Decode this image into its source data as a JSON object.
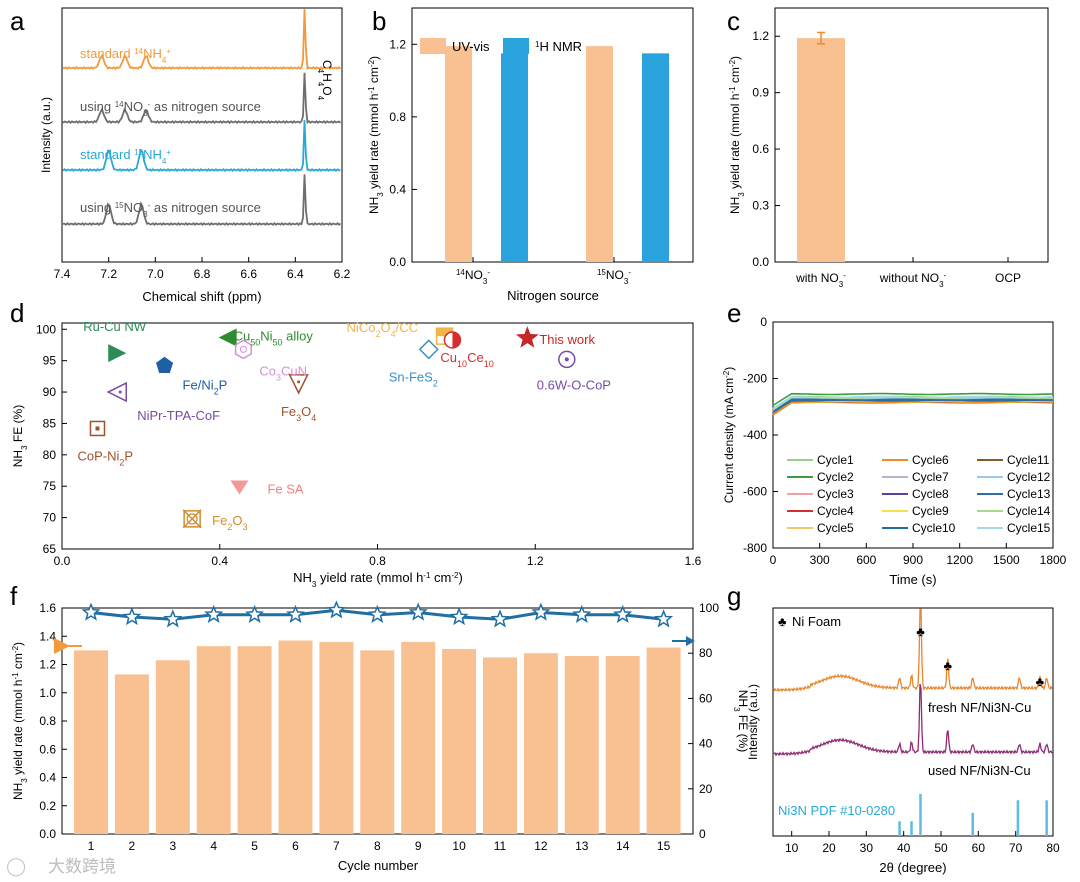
{
  "colors": {
    "orange": "#f39a3c",
    "grey": "#6e6e6e",
    "cyan": "#29a9d6",
    "bar_orange": "#f9c192",
    "bar_blue": "#2aa3dd",
    "star_blue": "#1f6fa3",
    "xrd_orange": "#e8872f",
    "xrd_purple": "#8e2b72",
    "pdf_blue": "#5bbde0"
  },
  "panels": {
    "a": {
      "letter": "a"
    },
    "b": {
      "letter": "b"
    },
    "c": {
      "letter": "c"
    },
    "d": {
      "letter": "d"
    },
    "e": {
      "letter": "e"
    },
    "f": {
      "letter": "f"
    },
    "g": {
      "letter": "g"
    }
  },
  "watermark": {
    "text": "大数跨境"
  },
  "chart_data": [
    {
      "panel": "a",
      "type": "line",
      "title": "",
      "xlabel": "Chemical shift (ppm)",
      "ylabel": "Intensity (a.u.)",
      "xlim": [
        7.4,
        6.2
      ],
      "xticks": [
        "7.4",
        "7.2",
        "7.0",
        "6.8",
        "6.6",
        "6.4",
        "6.2"
      ],
      "peak_label": "C4H4O4",
      "series": [
        {
          "name": "standard 14NH4+",
          "label_parts": [
            "standard ",
            "14",
            "NH",
            "4",
            "+"
          ],
          "color": "orange",
          "peaks_ppm": [
            7.23,
            7.13,
            7.04,
            6.36
          ]
        },
        {
          "name": "using 14NO3- as nitrogen source",
          "label_parts": [
            "using ",
            "14",
            "NO",
            "3",
            "-",
            " as nitrogen source"
          ],
          "color": "grey",
          "peaks_ppm": [
            7.23,
            7.13,
            7.04,
            6.36
          ]
        },
        {
          "name": "standard 15NH4+",
          "label_parts": [
            "standard ",
            "15",
            "NH",
            "4",
            "+"
          ],
          "color": "cyan",
          "peaks_ppm": [
            7.2,
            7.06,
            6.36
          ]
        },
        {
          "name": "using 15NO3- as nitrogen source",
          "label_parts": [
            "using ",
            "15",
            "NO",
            "3",
            "-",
            " as nitrogen source"
          ],
          "color": "grey",
          "peaks_ppm": [
            7.2,
            7.06,
            6.36
          ]
        }
      ]
    },
    {
      "panel": "b",
      "type": "bar",
      "xlabel": "Nitrogen source",
      "ylabel": "NH3 yield rate (mmol h-1 cm-2)",
      "ylim": [
        0,
        1.4
      ],
      "yticks": [
        "0.0",
        "0.4",
        "0.8",
        "1.2"
      ],
      "categories": [
        "14NO3-",
        "15NO3-"
      ],
      "series": [
        {
          "name": "UV-vis",
          "color": "bar_orange",
          "values": [
            1.19,
            1.19
          ]
        },
        {
          "name": "1H NMR",
          "color": "bar_blue",
          "values": [
            1.15,
            1.15
          ]
        }
      ]
    },
    {
      "panel": "c",
      "type": "bar",
      "xlabel": "",
      "ylabel": "NH3 yield rate (mmol h-1 cm-2)",
      "ylim": [
        0,
        1.35
      ],
      "yticks": [
        "0.0",
        "0.3",
        "0.6",
        "0.9",
        "1.2"
      ],
      "categories": [
        "with NO3-",
        "without NO3-",
        "OCP"
      ],
      "values": [
        1.19,
        0,
        0
      ],
      "error": [
        0.03,
        0,
        0
      ]
    },
    {
      "panel": "d",
      "type": "scatter",
      "xlabel": "NH3 yield rate (mmol h-1 cm-2)",
      "ylabel": "NH3 FE (%)",
      "xlim": [
        0,
        1.6
      ],
      "ylim": [
        65,
        101
      ],
      "xticks": [
        "0.0",
        "0.4",
        "0.8",
        "1.2",
        "1.6"
      ],
      "yticks": [
        "65",
        "70",
        "75",
        "80",
        "85",
        "90",
        "95",
        "100"
      ],
      "points": [
        {
          "name": "Ru-Cu NW",
          "x": 0.14,
          "y": 96.2,
          "marker": "tri-right",
          "color": "#2e8b57"
        },
        {
          "name": "Cu50Ni50 alloy",
          "x": 0.42,
          "y": 98.7,
          "marker": "tri-left",
          "color": "#2e8b2e"
        },
        {
          "name": "Co3CuN",
          "x": 0.46,
          "y": 96.8,
          "marker": "hexagon",
          "color": "#d68fd6"
        },
        {
          "name": "Fe/Ni2P",
          "x": 0.26,
          "y": 94.2,
          "marker": "pentagon",
          "color": "#1f5fa3"
        },
        {
          "name": "NiPr-TPA-CoF",
          "x": 0.14,
          "y": 90.0,
          "marker": "tri-left-dot",
          "color": "#7a4aa6"
        },
        {
          "name": "Fe3O4",
          "x": 0.6,
          "y": 91.3,
          "marker": "tri-down-dot",
          "color": "#a0522d"
        },
        {
          "name": "CoP-Ni2P",
          "x": 0.09,
          "y": 84.2,
          "marker": "square-dot",
          "color": "#a0522d"
        },
        {
          "name": "Fe SA",
          "x": 0.45,
          "y": 74.8,
          "marker": "tri-down",
          "color": "#f08080"
        },
        {
          "name": "Fe2O3",
          "x": 0.33,
          "y": 69.8,
          "marker": "crossed-square",
          "color": "#d48c2e"
        },
        {
          "name": "NiCo2O4/CC",
          "x": 0.97,
          "y": 98.9,
          "marker": "square-half",
          "color": "#f3b54a"
        },
        {
          "name": "Cu10Ce10",
          "x": 0.99,
          "y": 98.3,
          "marker": "circle-half",
          "color": "#d32f2f"
        },
        {
          "name": "Sn-FeS2",
          "x": 0.93,
          "y": 96.8,
          "marker": "diamond",
          "color": "#3a8fc6"
        },
        {
          "name": "This work",
          "x": 1.18,
          "y": 98.6,
          "marker": "star",
          "color": "#c62828"
        },
        {
          "name": "0.6W-O-CoP",
          "x": 1.28,
          "y": 95.2,
          "marker": "circle-dot",
          "color": "#7a4aa6"
        }
      ]
    },
    {
      "panel": "e",
      "type": "line",
      "xlabel": "Time (s)",
      "ylabel": "Current density (mA cm-2)",
      "xlim": [
        0,
        1800
      ],
      "ylim": [
        -800,
        0
      ],
      "xticks": [
        "0",
        "300",
        "600",
        "900",
        "1200",
        "1500",
        "1800"
      ],
      "yticks": [
        "0",
        "-200",
        "-400",
        "-600",
        "-800"
      ],
      "series": [
        {
          "name": "Cycle1",
          "color": "#9ad08a",
          "steady": -265
        },
        {
          "name": "Cycle2",
          "color": "#3f9b3f",
          "steady": -255
        },
        {
          "name": "Cycle3",
          "color": "#f0a0a0",
          "steady": -275
        },
        {
          "name": "Cycle4",
          "color": "#d32f2f",
          "steady": -280
        },
        {
          "name": "Cycle5",
          "color": "#f3c86a",
          "steady": -285
        },
        {
          "name": "Cycle6",
          "color": "#ef8a24",
          "steady": -285
        },
        {
          "name": "Cycle7",
          "color": "#b9b2d6",
          "steady": -275
        },
        {
          "name": "Cycle8",
          "color": "#5a3f9b",
          "steady": -280
        },
        {
          "name": "Cycle9",
          "color": "#f5e04a",
          "steady": -280
        },
        {
          "name": "Cycle10",
          "color": "#1f6fa3",
          "steady": -278
        },
        {
          "name": "Cycle11",
          "color": "#8b5a2b",
          "steady": -272
        },
        {
          "name": "Cycle12",
          "color": "#9ec8e8",
          "steady": -270
        },
        {
          "name": "Cycle13",
          "color": "#2c6fa8",
          "steady": -275
        },
        {
          "name": "Cycle14",
          "color": "#a8d98a",
          "steady": -268
        },
        {
          "name": "Cycle15",
          "color": "#a5d8e8",
          "steady": -266
        }
      ]
    },
    {
      "panel": "f",
      "type": "bar",
      "xlabel": "Cycle number",
      "ylabel": "NH3 yield rate (mmol h-1 cm-2)",
      "ylabel_right": "NH3 FE (%)",
      "ylim": [
        0,
        1.6
      ],
      "ylim_right": [
        0,
        100
      ],
      "yticks": [
        "0.0",
        "0.2",
        "0.4",
        "0.6",
        "0.8",
        "1.0",
        "1.2",
        "1.4",
        "1.6"
      ],
      "yticks_right": [
        "0",
        "20",
        "40",
        "60",
        "80",
        "100"
      ],
      "categories": [
        "1",
        "2",
        "3",
        "4",
        "5",
        "6",
        "7",
        "8",
        "9",
        "10",
        "11",
        "12",
        "13",
        "14",
        "15"
      ],
      "series": [
        {
          "name": "NH3 yield rate",
          "values": [
            1.3,
            1.13,
            1.23,
            1.33,
            1.33,
            1.37,
            1.36,
            1.3,
            1.36,
            1.31,
            1.25,
            1.28,
            1.26,
            1.26,
            1.32
          ]
        },
        {
          "name": "NH3 FE",
          "axis": "right",
          "values": [
            98,
            96,
            95,
            97,
            97,
            97,
            99,
            97,
            98,
            96,
            95,
            98,
            97,
            97,
            95
          ]
        }
      ]
    },
    {
      "panel": "g",
      "type": "line",
      "xlabel": "2θ (degree)",
      "ylabel": "Intensity (a.u.)",
      "xlim": [
        5,
        80
      ],
      "xticks": [
        "10",
        "20",
        "30",
        "40",
        "50",
        "60",
        "70",
        "80"
      ],
      "legend_marker": "♣",
      "legend": "Ni Foam",
      "series": [
        {
          "name": "fresh NF/Ni3N-Cu",
          "color": "xrd_orange"
        },
        {
          "name": "used NF/Ni3N-Cu",
          "color": "xrd_purple"
        }
      ],
      "reference": {
        "name": "Ni3N PDF #10-0280",
        "peaks": [
          38.9,
          42.1,
          44.5,
          58.5,
          70.6,
          78.3
        ],
        "heights": [
          0.35,
          0.35,
          1.0,
          0.55,
          0.85,
          0.85
        ]
      }
    }
  ]
}
